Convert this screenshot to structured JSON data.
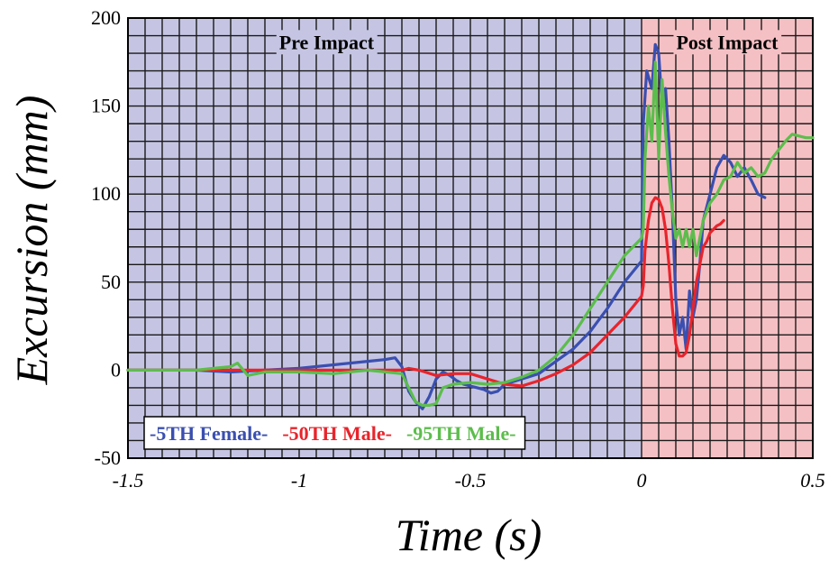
{
  "chart_data": {
    "type": "line",
    "xlabel": "Time (s)",
    "ylabel": "Excursion (mm)",
    "xlim": [
      -1.5,
      0.5
    ],
    "ylim": [
      -50,
      200
    ],
    "x_ticks": [
      -1.5,
      -1,
      -0.5,
      0,
      0.5
    ],
    "x_tick_labels": [
      "-1.5",
      "-1",
      "-0.5",
      "0",
      "0.5"
    ],
    "y_ticks": [
      -50,
      0,
      50,
      100,
      150,
      200
    ],
    "y_tick_labels": [
      "-50",
      "0",
      "50",
      "100",
      "150",
      "200"
    ],
    "grid": true,
    "regions": [
      {
        "label": "Pre Impact",
        "x_range": [
          -1.5,
          0
        ],
        "color": "#c5c5e3"
      },
      {
        "label": "Post Impact",
        "x_range": [
          0,
          0.5
        ],
        "color": "#f5c0c4"
      }
    ],
    "legend_placement": "bottom-left",
    "series": [
      {
        "name": "-5TH Female-",
        "color": "#3a4fb0",
        "x": [
          -1.5,
          -1.3,
          -1.2,
          -1.1,
          -1.0,
          -0.9,
          -0.8,
          -0.75,
          -0.72,
          -0.7,
          -0.68,
          -0.66,
          -0.64,
          -0.62,
          -0.6,
          -0.58,
          -0.56,
          -0.54,
          -0.52,
          -0.5,
          -0.48,
          -0.46,
          -0.44,
          -0.42,
          -0.4,
          -0.35,
          -0.3,
          -0.25,
          -0.2,
          -0.15,
          -0.1,
          -0.05,
          0,
          0.005,
          0.015,
          0.03,
          0.04,
          0.05,
          0.06,
          0.07,
          0.08,
          0.09,
          0.1,
          0.11,
          0.12,
          0.13,
          0.14,
          0.15,
          0.16,
          0.17,
          0.18,
          0.2,
          0.22,
          0.24,
          0.26,
          0.28,
          0.3,
          0.32,
          0.34,
          0.36
        ],
        "y": [
          0,
          0,
          -1,
          0,
          1,
          3,
          5,
          6,
          7,
          2,
          -12,
          -18,
          -22,
          -15,
          -5,
          -1,
          -3,
          -6,
          -8,
          -9,
          -10,
          -11,
          -13,
          -12,
          -8,
          -5,
          -2,
          5,
          12,
          22,
          35,
          50,
          62,
          140,
          170,
          160,
          185,
          180,
          150,
          160,
          130,
          90,
          40,
          20,
          30,
          12,
          45,
          30,
          40,
          60,
          85,
          100,
          115,
          122,
          118,
          110,
          115,
          108,
          100,
          98
        ]
      },
      {
        "name": "-50TH Male-",
        "color": "#e8242c",
        "x": [
          -1.5,
          -1.2,
          -1.0,
          -0.8,
          -0.7,
          -0.68,
          -0.65,
          -0.6,
          -0.55,
          -0.5,
          -0.45,
          -0.4,
          -0.35,
          -0.3,
          -0.25,
          -0.2,
          -0.15,
          -0.1,
          -0.05,
          0,
          0.005,
          0.01,
          0.02,
          0.03,
          0.04,
          0.05,
          0.06,
          0.07,
          0.08,
          0.09,
          0.1,
          0.11,
          0.12,
          0.13,
          0.14,
          0.15,
          0.16,
          0.17,
          0.18,
          0.19,
          0.2,
          0.21,
          0.22,
          0.23,
          0.24
        ],
        "y": [
          0,
          0,
          0,
          0,
          0,
          1,
          0,
          -3,
          -2,
          -2,
          -5,
          -8,
          -9,
          -6,
          -2,
          3,
          10,
          20,
          30,
          42,
          48,
          68,
          85,
          95,
          98,
          97,
          92,
          80,
          60,
          35,
          15,
          8,
          8,
          10,
          20,
          35,
          50,
          60,
          70,
          73,
          78,
          80,
          82,
          83,
          85
        ]
      },
      {
        "name": "-95TH Male-",
        "color": "#5cbd4c",
        "x": [
          -1.5,
          -1.3,
          -1.25,
          -1.2,
          -1.18,
          -1.15,
          -1.1,
          -1.0,
          -0.9,
          -0.8,
          -0.7,
          -0.68,
          -0.66,
          -0.64,
          -0.62,
          -0.6,
          -0.58,
          -0.55,
          -0.5,
          -0.45,
          -0.4,
          -0.35,
          -0.3,
          -0.25,
          -0.2,
          -0.15,
          -0.1,
          -0.05,
          0,
          0.005,
          0.01,
          0.02,
          0.03,
          0.04,
          0.05,
          0.06,
          0.07,
          0.08,
          0.09,
          0.1,
          0.11,
          0.12,
          0.13,
          0.14,
          0.15,
          0.16,
          0.17,
          0.18,
          0.2,
          0.22,
          0.24,
          0.26,
          0.28,
          0.3,
          0.32,
          0.34,
          0.36,
          0.38,
          0.4,
          0.42,
          0.44,
          0.46,
          0.48,
          0.5
        ],
        "y": [
          0,
          0,
          1,
          2,
          4,
          -3,
          -1,
          -1,
          -2,
          0,
          -2,
          -10,
          -18,
          -20,
          -20,
          -19,
          -10,
          -8,
          -7,
          -8,
          -7,
          -4,
          0,
          8,
          20,
          35,
          50,
          65,
          75,
          80,
          120,
          150,
          130,
          175,
          120,
          165,
          135,
          110,
          90,
          75,
          80,
          70,
          80,
          70,
          80,
          65,
          75,
          85,
          95,
          100,
          108,
          110,
          118,
          112,
          115,
          110,
          112,
          120,
          125,
          130,
          134,
          133,
          132,
          132
        ]
      }
    ]
  }
}
